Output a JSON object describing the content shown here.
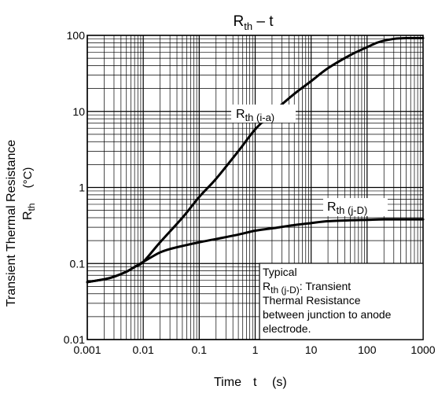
{
  "chart_data": {
    "type": "line",
    "title": {
      "main": "R",
      "sub": "th",
      "rest": " – t"
    },
    "xlabel": {
      "word": "Time",
      "var": "t",
      "unit": "(s)"
    },
    "ylabel": {
      "line1": "Transient Thermal Resistance",
      "var": "R",
      "var_sub": "th",
      "unit": "(°C)"
    },
    "x_scale": "log",
    "y_scale": "log",
    "xlim": [
      0.001,
      1000
    ],
    "ylim": [
      0.01,
      100
    ],
    "x_ticks": [
      0.001,
      0.01,
      0.1,
      1,
      10,
      100,
      1000
    ],
    "x_tick_labels": [
      "0.001",
      "0.01",
      "0.1",
      "1",
      "10",
      "100",
      "1000"
    ],
    "y_ticks": [
      0.01,
      0.1,
      1,
      10,
      100
    ],
    "y_tick_labels": [
      "0.01",
      "0.1",
      "1",
      "10",
      "100"
    ],
    "grid": true,
    "series": [
      {
        "label_main": "R",
        "label_sub": "th (i-a)",
        "x": [
          0.001,
          0.002,
          0.003,
          0.005,
          0.007,
          0.01,
          0.02,
          0.05,
          0.1,
          0.2,
          0.5,
          1,
          2,
          5,
          10,
          20,
          50,
          100,
          150,
          200,
          300,
          500,
          1000
        ],
        "y": [
          0.057,
          0.062,
          0.067,
          0.078,
          0.09,
          0.105,
          0.19,
          0.4,
          0.75,
          1.3,
          3.0,
          5.8,
          9.5,
          17,
          25,
          37,
          55,
          70,
          80,
          85,
          90,
          92,
          92
        ]
      },
      {
        "label_main": "R",
        "label_sub": "th (j-D)",
        "x": [
          0.001,
          0.002,
          0.003,
          0.005,
          0.007,
          0.01,
          0.015,
          0.02,
          0.03,
          0.05,
          0.1,
          0.2,
          0.5,
          1,
          2,
          5,
          10,
          20,
          50,
          100,
          200,
          500,
          1000
        ],
        "y": [
          0.057,
          0.062,
          0.067,
          0.078,
          0.09,
          0.105,
          0.125,
          0.14,
          0.155,
          0.17,
          0.19,
          0.21,
          0.24,
          0.27,
          0.29,
          0.32,
          0.34,
          0.36,
          0.37,
          0.375,
          0.38,
          0.38,
          0.38
        ]
      }
    ],
    "annotation": {
      "line1": "Typical",
      "line2_main": "R",
      "line2_sub": "th (j-D)",
      "line2_rest": ": Transient",
      "line3": "Thermal Resistance",
      "line4": "between junction to anode",
      "line5": "electrode."
    }
  }
}
